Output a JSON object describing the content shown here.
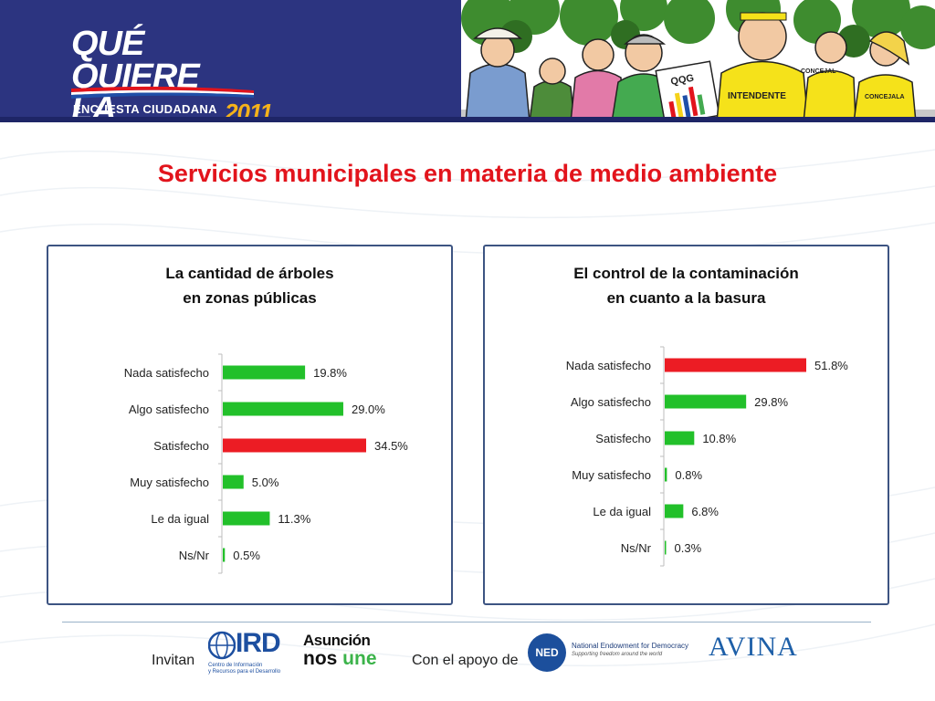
{
  "header": {
    "logo_line1": "QUÉ QUIERE",
    "logo_line2": "LA GENTE",
    "logo_year": "2011",
    "logo_sub": "ENCUESTA CIUDADANA",
    "cartoon_sign1": "INTENDENTE",
    "cartoon_sign2": "CONCEJALA",
    "cartoon_sign3": "CONCEJAL",
    "cartoon_sign4": "QQG"
  },
  "title": "Servicios municipales en materia de medio ambiente",
  "chart_data": [
    {
      "type": "bar",
      "orientation": "horizontal",
      "title_line1": "La cantidad de árboles",
      "title_line2": "en zonas públicas",
      "categories": [
        "Nada satisfecho",
        "Algo satisfecho",
        "Satisfecho",
        "Muy satisfecho",
        "Le da igual",
        "Ns/Nr"
      ],
      "values": [
        19.8,
        29.0,
        34.5,
        5.0,
        11.3,
        0.5
      ],
      "labels": [
        "19.8%",
        "29.0%",
        "34.5%",
        "5.0%",
        "11.3%",
        "0.5%"
      ],
      "highlight_index": 2,
      "xlim": [
        0,
        35
      ]
    },
    {
      "type": "bar",
      "orientation": "horizontal",
      "title_line1": "El control de la contaminación",
      "title_line2": "en cuanto a la basura",
      "categories": [
        "Nada satisfecho",
        "Algo satisfecho",
        "Satisfecho",
        "Muy satisfecho",
        "Le da igual",
        "Ns/Nr"
      ],
      "values": [
        51.8,
        29.8,
        10.8,
        0.8,
        6.8,
        0.3
      ],
      "labels": [
        "51.8%",
        "29.8%",
        "10.8%",
        "0.8%",
        "6.8%",
        "0.3%"
      ],
      "highlight_index": 0,
      "xlim": [
        0,
        52
      ]
    }
  ],
  "colors": {
    "bar": "#22c02a",
    "highlight": "#ec1c24",
    "title": "#e2141c",
    "header_bg": "#2c3480",
    "panel_border": "#3d5482"
  },
  "footer": {
    "invitan": "Invitan",
    "ird_name": "IRD",
    "ird_sub1": "Centro de Información",
    "ird_sub2": "y Recursos para el Desarrollo",
    "asuncion_line1": "Asunción",
    "asuncion_line2a": "nos ",
    "asuncion_line2b": "une",
    "apoyo": "Con el apoyo de",
    "ned_abbr": "NED",
    "ned_name": "National Endowment for Democracy",
    "ned_sub": "Supporting freedom around the world",
    "avina": "AVINA"
  }
}
